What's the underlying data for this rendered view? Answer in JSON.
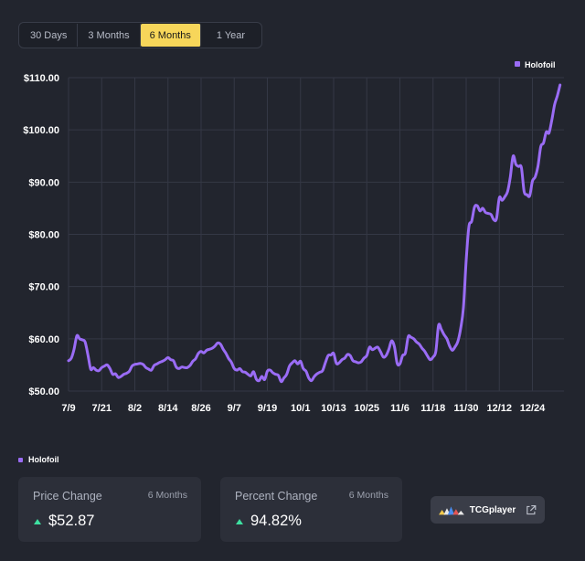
{
  "range_tabs": [
    {
      "label": "30 Days",
      "active": false
    },
    {
      "label": "3 Months",
      "active": false
    },
    {
      "label": "6 Months",
      "active": true
    },
    {
      "label": "1 Year",
      "active": false
    }
  ],
  "colors": {
    "series": "#9a6cf5",
    "active_tab": "#f7d65a",
    "positive": "#3ee0a1",
    "grid": "#343845"
  },
  "chart_data": {
    "type": "line",
    "title": "",
    "xlabel": "",
    "ylabel": "",
    "ylim": [
      50,
      110
    ],
    "yticks": [
      50,
      60,
      70,
      80,
      90,
      100,
      110
    ],
    "ytick_labels": [
      "$50.00",
      "$60.00",
      "$70.00",
      "$80.00",
      "$90.00",
      "$100.00",
      "$110.00"
    ],
    "x_start": "7/9",
    "x_end": "1/3",
    "xtick_labels": [
      "7/9",
      "7/21",
      "8/2",
      "8/14",
      "8/26",
      "9/7",
      "9/19",
      "10/1",
      "10/13",
      "10/25",
      "11/6",
      "11/18",
      "11/30",
      "12/12",
      "12/24"
    ],
    "grid": true,
    "legend_position": "top-right",
    "series": [
      {
        "name": "Holofoil",
        "color": "#9a6cf5",
        "points": [
          [
            "7/9",
            55.8
          ],
          [
            "7/10",
            56.3
          ],
          [
            "7/11",
            58.0
          ],
          [
            "7/12",
            60.6
          ],
          [
            "7/13",
            60.0
          ],
          [
            "7/14",
            59.8
          ],
          [
            "7/15",
            59.4
          ],
          [
            "7/16",
            57.0
          ],
          [
            "7/17",
            54.2
          ],
          [
            "7/18",
            54.5
          ],
          [
            "7/19",
            54.0
          ],
          [
            "7/20",
            53.9
          ],
          [
            "7/21",
            54.5
          ],
          [
            "7/22",
            54.8
          ],
          [
            "7/23",
            55.0
          ],
          [
            "7/24",
            54.3
          ],
          [
            "7/25",
            53.2
          ],
          [
            "7/26",
            53.3
          ],
          [
            "7/27",
            52.6
          ],
          [
            "7/28",
            52.8
          ],
          [
            "7/29",
            53.2
          ],
          [
            "7/30",
            53.4
          ],
          [
            "7/31",
            53.8
          ],
          [
            "8/1",
            54.8
          ],
          [
            "8/2",
            55.1
          ],
          [
            "8/3",
            55.2
          ],
          [
            "8/4",
            55.3
          ],
          [
            "8/5",
            55.1
          ],
          [
            "8/6",
            54.5
          ],
          [
            "8/7",
            54.2
          ],
          [
            "8/8",
            54.0
          ],
          [
            "8/9",
            54.9
          ],
          [
            "8/10",
            55.2
          ],
          [
            "8/11",
            55.5
          ],
          [
            "8/12",
            55.7
          ],
          [
            "8/13",
            56.0
          ],
          [
            "8/14",
            56.4
          ],
          [
            "8/15",
            56.0
          ],
          [
            "8/16",
            55.8
          ],
          [
            "8/17",
            54.6
          ],
          [
            "8/18",
            54.3
          ],
          [
            "8/19",
            54.6
          ],
          [
            "8/20",
            54.5
          ],
          [
            "8/21",
            54.5
          ],
          [
            "8/22",
            54.9
          ],
          [
            "8/23",
            55.7
          ],
          [
            "8/24",
            56.2
          ],
          [
            "8/25",
            57.2
          ],
          [
            "8/26",
            57.6
          ],
          [
            "8/27",
            57.3
          ],
          [
            "8/28",
            57.8
          ],
          [
            "8/29",
            58.0
          ],
          [
            "8/30",
            58.2
          ],
          [
            "8/31",
            58.6
          ],
          [
            "9/1",
            59.2
          ],
          [
            "9/2",
            59.0
          ],
          [
            "9/3",
            58.0
          ],
          [
            "9/4",
            57.2
          ],
          [
            "9/5",
            56.2
          ],
          [
            "9/6",
            55.5
          ],
          [
            "9/7",
            54.3
          ],
          [
            "9/8",
            54.0
          ],
          [
            "9/9",
            54.3
          ],
          [
            "9/10",
            53.7
          ],
          [
            "9/11",
            53.6
          ],
          [
            "9/12",
            53.2
          ],
          [
            "9/13",
            52.9
          ],
          [
            "9/14",
            53.7
          ],
          [
            "9/15",
            52.3
          ],
          [
            "9/16",
            52.0
          ],
          [
            "9/17",
            52.8
          ],
          [
            "9/18",
            52.2
          ],
          [
            "9/19",
            53.8
          ],
          [
            "9/20",
            54.0
          ],
          [
            "9/21",
            53.5
          ],
          [
            "9/22",
            53.2
          ],
          [
            "9/23",
            53.0
          ],
          [
            "9/24",
            51.8
          ],
          [
            "9/25",
            52.5
          ],
          [
            "9/26",
            53.2
          ],
          [
            "9/27",
            54.8
          ],
          [
            "9/28",
            55.4
          ],
          [
            "9/29",
            55.8
          ],
          [
            "9/30",
            55.2
          ],
          [
            "10/1",
            55.7
          ],
          [
            "10/2",
            54.3
          ],
          [
            "10/3",
            53.8
          ],
          [
            "10/4",
            52.5
          ],
          [
            "10/5",
            52.0
          ],
          [
            "10/6",
            52.8
          ],
          [
            "10/7",
            53.3
          ],
          [
            "10/8",
            53.6
          ],
          [
            "10/9",
            53.9
          ],
          [
            "10/10",
            55.4
          ],
          [
            "10/11",
            56.8
          ],
          [
            "10/12",
            56.9
          ],
          [
            "10/13",
            57.2
          ],
          [
            "10/14",
            55.3
          ],
          [
            "10/15",
            55.4
          ],
          [
            "10/16",
            56.0
          ],
          [
            "10/17",
            56.3
          ],
          [
            "10/18",
            57.0
          ],
          [
            "10/19",
            56.8
          ],
          [
            "10/20",
            55.8
          ],
          [
            "10/21",
            55.6
          ],
          [
            "10/22",
            55.4
          ],
          [
            "10/23",
            55.6
          ],
          [
            "10/24",
            56.3
          ],
          [
            "10/25",
            56.8
          ],
          [
            "10/26",
            58.4
          ],
          [
            "10/27",
            57.9
          ],
          [
            "10/28",
            58.2
          ],
          [
            "10/29",
            58.4
          ],
          [
            "10/30",
            57.5
          ],
          [
            "10/31",
            56.5
          ],
          [
            "11/1",
            56.8
          ],
          [
            "11/2",
            58.0
          ],
          [
            "11/3",
            59.6
          ],
          [
            "11/4",
            58.5
          ],
          [
            "11/5",
            55.3
          ],
          [
            "11/6",
            55.2
          ],
          [
            "11/7",
            56.8
          ],
          [
            "11/8",
            57.3
          ],
          [
            "11/9",
            60.4
          ],
          [
            "11/10",
            60.3
          ],
          [
            "11/11",
            60.0
          ],
          [
            "11/12",
            59.4
          ],
          [
            "11/13",
            59.0
          ],
          [
            "11/14",
            58.2
          ],
          [
            "11/15",
            57.6
          ],
          [
            "11/16",
            56.7
          ],
          [
            "11/17",
            56.0
          ],
          [
            "11/18",
            56.5
          ],
          [
            "11/19",
            57.6
          ],
          [
            "11/20",
            62.6
          ],
          [
            "11/21",
            61.8
          ],
          [
            "11/22",
            60.8
          ],
          [
            "11/23",
            60.0
          ],
          [
            "11/24",
            58.6
          ],
          [
            "11/25",
            57.8
          ],
          [
            "11/26",
            58.5
          ],
          [
            "11/27",
            59.5
          ],
          [
            "11/28",
            62.0
          ],
          [
            "11/29",
            66.0
          ],
          [
            "11/30",
            75.0
          ],
          [
            "12/1",
            81.5
          ],
          [
            "12/2",
            82.5
          ],
          [
            "12/3",
            85.2
          ],
          [
            "12/4",
            85.5
          ],
          [
            "12/5",
            84.5
          ],
          [
            "12/6",
            85.0
          ],
          [
            "12/7",
            84.2
          ],
          [
            "12/8",
            84.0
          ],
          [
            "12/9",
            83.8
          ],
          [
            "12/10",
            82.8
          ],
          [
            "12/11",
            83.0
          ],
          [
            "12/12",
            87.0
          ],
          [
            "12/13",
            86.5
          ],
          [
            "12/14",
            87.2
          ],
          [
            "12/15",
            88.2
          ],
          [
            "12/16",
            91.0
          ],
          [
            "12/17",
            95.0
          ],
          [
            "12/18",
            93.4
          ],
          [
            "12/19",
            93.0
          ],
          [
            "12/20",
            92.8
          ],
          [
            "12/21",
            88.2
          ],
          [
            "12/22",
            87.6
          ],
          [
            "12/23",
            87.4
          ],
          [
            "12/24",
            90.2
          ],
          [
            "12/25",
            91.0
          ],
          [
            "12/26",
            93.0
          ],
          [
            "12/27",
            96.8
          ],
          [
            "12/28",
            97.5
          ],
          [
            "12/29",
            99.6
          ],
          [
            "12/30",
            99.4
          ],
          [
            "12/31",
            101.8
          ],
          [
            "1/1",
            104.8
          ],
          [
            "1/2",
            106.5
          ],
          [
            "1/3",
            108.6
          ]
        ]
      }
    ]
  },
  "bottom_legend": {
    "label": "Holofoil"
  },
  "stats": [
    {
      "title": "Price Change",
      "period": "6 Months",
      "value": "$52.87"
    },
    {
      "title": "Percent Change",
      "period": "6 Months",
      "value": "94.82%"
    }
  ],
  "vendor_button": {
    "label": "TCGplayer",
    "icon": "external-link-icon"
  }
}
